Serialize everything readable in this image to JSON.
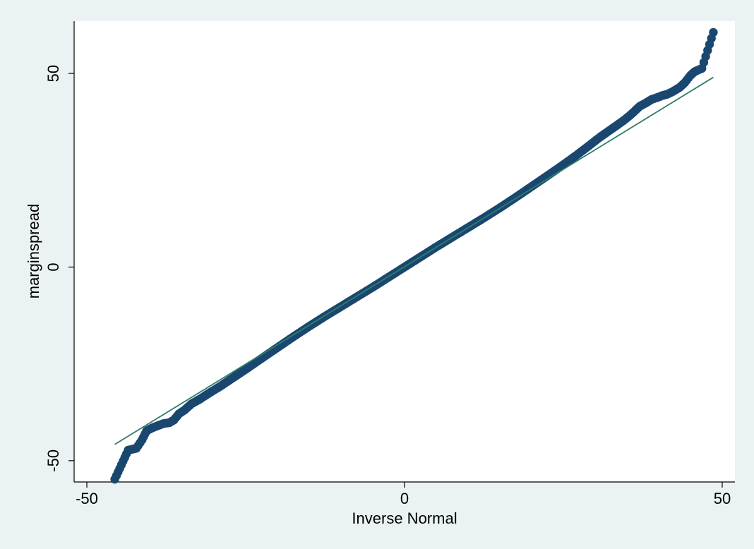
{
  "chart_data": {
    "type": "scatter",
    "title": "",
    "xlabel": "Inverse Normal",
    "ylabel": "marginspread",
    "xlim": [
      -52,
      52
    ],
    "ylim": [
      -55.5,
      63.5
    ],
    "x_ticks": [
      -50,
      0,
      50
    ],
    "y_ticks": [
      -50,
      0,
      50
    ],
    "x_tick_labels": [
      "-50",
      "0",
      "50"
    ],
    "y_tick_labels": [
      "-50",
      "0",
      "50"
    ],
    "grid": false,
    "legend": "none",
    "series": [
      {
        "points": [
          [
            -45.6,
            -54.8
          ],
          [
            -43.5,
            -47.3
          ],
          [
            -42.2,
            -46.8
          ],
          [
            -41.3,
            -44.6
          ],
          [
            -40.6,
            -42.3
          ],
          [
            -39.8,
            -41.6
          ],
          [
            -38.9,
            -41.0
          ],
          [
            -37.9,
            -40.4
          ],
          [
            -37.0,
            -40.2
          ],
          [
            -36.3,
            -39.5
          ],
          [
            -35.5,
            -37.9
          ],
          [
            -34.6,
            -36.9
          ],
          [
            -33.5,
            -35.3
          ],
          [
            -32.2,
            -34.1
          ],
          [
            -30.8,
            -32.6
          ],
          [
            -29.0,
            -30.8
          ],
          [
            -27.0,
            -28.6
          ],
          [
            -24.8,
            -26.2
          ],
          [
            -22.5,
            -23.6
          ],
          [
            -20.0,
            -20.8
          ],
          [
            -17.5,
            -18.0
          ],
          [
            -15.0,
            -15.3
          ],
          [
            -12.5,
            -12.7
          ],
          [
            -10.0,
            -10.2
          ],
          [
            -7.5,
            -7.7
          ],
          [
            -5.0,
            -5.2
          ],
          [
            -2.5,
            -2.6
          ],
          [
            0.0,
            0.0
          ],
          [
            2.5,
            2.6
          ],
          [
            5.0,
            5.2
          ],
          [
            7.5,
            7.7
          ],
          [
            10.0,
            10.2
          ],
          [
            12.5,
            12.7
          ],
          [
            15.0,
            15.3
          ],
          [
            17.5,
            18.0
          ],
          [
            20.0,
            20.8
          ],
          [
            22.5,
            23.6
          ],
          [
            24.8,
            26.2
          ],
          [
            27.0,
            28.8
          ],
          [
            29.0,
            31.3
          ],
          [
            30.8,
            33.6
          ],
          [
            32.2,
            35.2
          ],
          [
            33.5,
            36.7
          ],
          [
            34.6,
            38.0
          ],
          [
            35.5,
            39.2
          ],
          [
            36.3,
            40.4
          ],
          [
            37.0,
            41.5
          ],
          [
            37.9,
            42.3
          ],
          [
            38.9,
            43.3
          ],
          [
            39.8,
            43.8
          ],
          [
            40.6,
            44.3
          ],
          [
            41.3,
            44.6
          ],
          [
            42.2,
            45.3
          ],
          [
            43.3,
            46.4
          ],
          [
            44.1,
            47.6
          ],
          [
            45.0,
            49.5
          ],
          [
            45.7,
            50.5
          ],
          [
            46.8,
            51.3
          ],
          [
            48.6,
            60.6
          ]
        ]
      },
      {
        "line": [
          [
            -45.6,
            -45.8
          ],
          [
            48.6,
            49.0
          ]
        ]
      }
    ],
    "colors": {
      "marker": "#1a476f",
      "line": "#2e7d6a",
      "plot_bg": "#ffffff",
      "outer_bg": "#eaf2f3"
    }
  }
}
